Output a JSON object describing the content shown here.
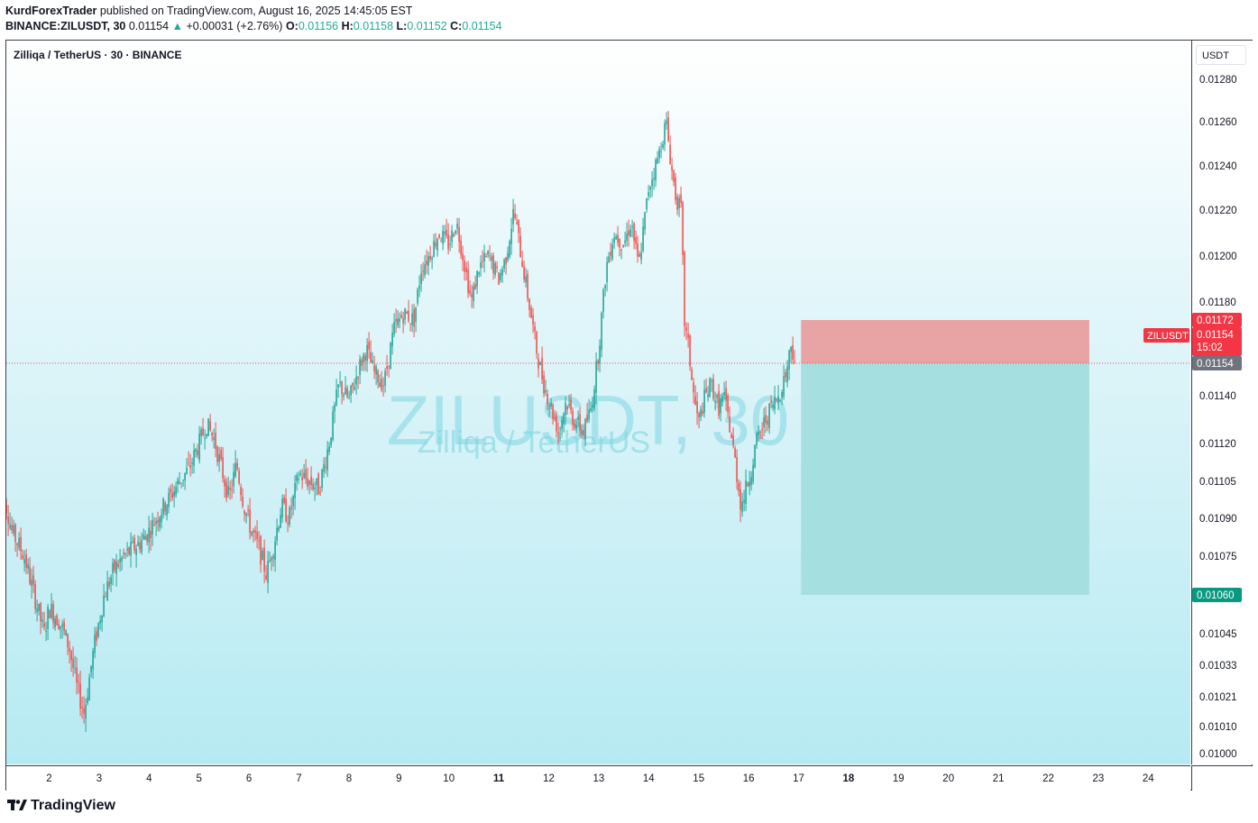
{
  "header": {
    "author": "KurdForexTrader",
    "published_text": "published on TradingView.com, August 16, 2025 14:45:05 EST",
    "symbol_line": "BINANCE:ZILUSDT, 30",
    "last_price": "0.01154",
    "change": "+0.00031 (+2.76%)",
    "open_label": "O:",
    "open": "0.01156",
    "high_label": "H:",
    "high": "0.01158",
    "low_label": "L:",
    "low": "0.01152",
    "close_label": "C:",
    "close": "0.01154"
  },
  "legend": {
    "title": "Zilliqa / TetherUS · 30 · BINANCE"
  },
  "price_axis": {
    "currency_button": "USDT"
  },
  "watermark": {
    "symbol": "ZILUSDT, 30",
    "name": "Zilliqa / TetherUS"
  },
  "footer": {
    "brand": "TradingView"
  },
  "colors": {
    "up": "#26a69a",
    "down": "#ef5350",
    "stop_zone": "#e8a3a5",
    "target_zone": "#a6dfdf",
    "current_price_tag": "#6f737e",
    "stop_tag": "#f23645",
    "target_tag": "#089981"
  },
  "price_tags": {
    "stop": "0.01172",
    "current": "0.01154",
    "countdown": "15:02",
    "current_line": "0.01154",
    "target": "0.01060",
    "symbol_tag": "ZILUSDT"
  },
  "chart_data": {
    "type": "candlestick",
    "interval": "30",
    "yticks": [
      "0.01280",
      "0.01260",
      "0.01240",
      "0.01220",
      "0.01200",
      "0.01180",
      "0.01140",
      "0.01120",
      "0.01105",
      "0.01090",
      "0.01075",
      "0.01045",
      "0.01033",
      "0.01021",
      "0.01010",
      "0.01000"
    ],
    "xticks": [
      "2",
      "3",
      "4",
      "5",
      "6",
      "7",
      "8",
      "9",
      "10",
      "11",
      "12",
      "13",
      "14",
      "15",
      "16",
      "17",
      "18",
      "19",
      "20",
      "21",
      "22",
      "23",
      "24"
    ],
    "close_path": [
      [
        1.0,
        0.01108
      ],
      [
        1.25,
        0.01085
      ],
      [
        1.5,
        0.01075
      ],
      [
        1.7,
        0.0106
      ],
      [
        1.9,
        0.01045
      ],
      [
        2.0,
        0.01055
      ],
      [
        2.2,
        0.0105
      ],
      [
        2.4,
        0.0104
      ],
      [
        2.55,
        0.01025
      ],
      [
        2.7,
        0.01015
      ],
      [
        2.9,
        0.0104
      ],
      [
        3.1,
        0.0106
      ],
      [
        3.3,
        0.0107
      ],
      [
        3.5,
        0.01075
      ],
      [
        3.8,
        0.0108
      ],
      [
        4.0,
        0.01085
      ],
      [
        4.2,
        0.01092
      ],
      [
        4.4,
        0.01098
      ],
      [
        4.6,
        0.01105
      ],
      [
        4.8,
        0.0111
      ],
      [
        5.0,
        0.0112
      ],
      [
        5.15,
        0.01128
      ],
      [
        5.3,
        0.01122
      ],
      [
        5.45,
        0.0111
      ],
      [
        5.6,
        0.01098
      ],
      [
        5.75,
        0.01112
      ],
      [
        5.9,
        0.01095
      ],
      [
        6.05,
        0.01085
      ],
      [
        6.2,
        0.01078
      ],
      [
        6.35,
        0.01068
      ],
      [
        6.5,
        0.0108
      ],
      [
        6.65,
        0.01095
      ],
      [
        6.8,
        0.0109
      ],
      [
        7.0,
        0.01108
      ],
      [
        7.2,
        0.01105
      ],
      [
        7.4,
        0.01102
      ],
      [
        7.6,
        0.0112
      ],
      [
        7.8,
        0.01145
      ],
      [
        8.0,
        0.01138
      ],
      [
        8.2,
        0.01152
      ],
      [
        8.35,
        0.0116
      ],
      [
        8.5,
        0.0115
      ],
      [
        8.7,
        0.01145
      ],
      [
        8.9,
        0.01168
      ],
      [
        9.1,
        0.01175
      ],
      [
        9.3,
        0.01172
      ],
      [
        9.45,
        0.01195
      ],
      [
        9.6,
        0.012
      ],
      [
        9.8,
        0.0121
      ],
      [
        10.0,
        0.01205
      ],
      [
        10.15,
        0.01215
      ],
      [
        10.3,
        0.01198
      ],
      [
        10.45,
        0.0118
      ],
      [
        10.6,
        0.01195
      ],
      [
        10.8,
        0.012
      ],
      [
        11.0,
        0.0119
      ],
      [
        11.15,
        0.012
      ],
      [
        11.3,
        0.0122
      ],
      [
        11.45,
        0.012
      ],
      [
        11.6,
        0.0118
      ],
      [
        11.75,
        0.0116
      ],
      [
        11.9,
        0.01145
      ],
      [
        12.05,
        0.01135
      ],
      [
        12.2,
        0.01125
      ],
      [
        12.35,
        0.01138
      ],
      [
        12.5,
        0.0113
      ],
      [
        12.7,
        0.01125
      ],
      [
        12.85,
        0.01135
      ],
      [
        13.0,
        0.0116
      ],
      [
        13.15,
        0.01195
      ],
      [
        13.3,
        0.0121
      ],
      [
        13.5,
        0.01205
      ],
      [
        13.65,
        0.01215
      ],
      [
        13.8,
        0.01195
      ],
      [
        14.0,
        0.0123
      ],
      [
        14.2,
        0.01245
      ],
      [
        14.35,
        0.0126
      ],
      [
        14.45,
        0.0124
      ],
      [
        14.55,
        0.01225
      ],
      [
        14.65,
        0.0122
      ],
      [
        14.72,
        0.0117
      ],
      [
        14.8,
        0.0116
      ],
      [
        14.9,
        0.0114
      ],
      [
        15.0,
        0.01128
      ],
      [
        15.1,
        0.01138
      ],
      [
        15.25,
        0.01145
      ],
      [
        15.4,
        0.01135
      ],
      [
        15.5,
        0.0114
      ],
      [
        15.6,
        0.0113
      ],
      [
        15.75,
        0.0111
      ],
      [
        15.85,
        0.01095
      ],
      [
        15.95,
        0.01102
      ],
      [
        16.05,
        0.0111
      ],
      [
        16.15,
        0.0112
      ],
      [
        16.3,
        0.01128
      ],
      [
        16.45,
        0.01135
      ],
      [
        16.6,
        0.0114
      ],
      [
        16.75,
        0.0115
      ],
      [
        16.85,
        0.01162
      ],
      [
        16.95,
        0.01154
      ]
    ],
    "position": {
      "side": "short",
      "entry": 0.01154,
      "stop": 0.01172,
      "target": 0.0106,
      "start_x": 17.05,
      "end_x": 22.82
    }
  }
}
